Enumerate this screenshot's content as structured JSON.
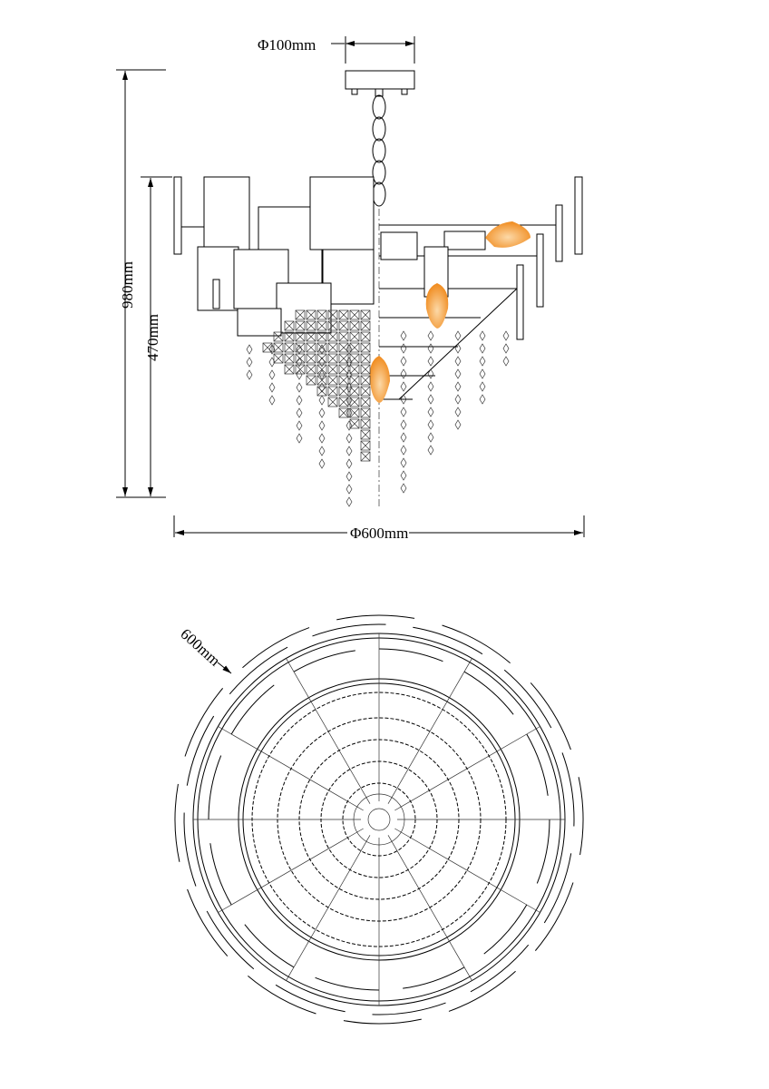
{
  "dimensions": {
    "canopy_diameter": "Φ100mm",
    "total_height": "980mm",
    "body_height": "470mm",
    "body_diameter": "Φ600mm",
    "top_view_diameter": "600mm"
  },
  "colors": {
    "line": "#000000",
    "flame": "#f08a1c"
  }
}
